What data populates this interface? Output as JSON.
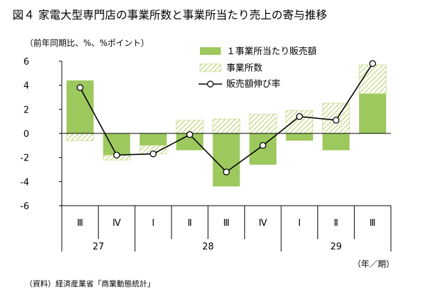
{
  "title": "図４ 家電大型専門店の事業所数と事業所当たり売上の寄与推移",
  "unit_label": "（前年同期比、%、%ポイント）",
  "source_note": "（資料）経済産業省「商業動態統計」",
  "period_label": "（年／期）",
  "colors": {
    "per_store": "#9dc85d",
    "stores_hatch": "#c9dc8f",
    "line": "#000000",
    "axis": "#000000"
  },
  "chart_data": {
    "type": "bar",
    "stacked": true,
    "categories": [
      "Ⅲ",
      "Ⅳ",
      "Ⅰ",
      "Ⅱ",
      "Ⅲ",
      "Ⅳ",
      "Ⅰ",
      "Ⅱ",
      "Ⅲ"
    ],
    "year_groups": [
      {
        "label": "27",
        "count": 2
      },
      {
        "label": "28",
        "count": 4
      },
      {
        "label": "29",
        "count": 3
      }
    ],
    "series": [
      {
        "name": "１事業所当たり販売額",
        "kind": "bar",
        "style": "solid",
        "values": [
          4.4,
          -1.8,
          -1.0,
          -1.4,
          -4.4,
          -2.6,
          -0.6,
          -1.4,
          3.3
        ]
      },
      {
        "name": "事業所数",
        "kind": "bar",
        "style": "hatched",
        "values": [
          -0.6,
          -0.4,
          -0.7,
          1.1,
          1.2,
          1.6,
          1.9,
          2.5,
          2.4
        ]
      },
      {
        "name": "販売額伸び率",
        "kind": "line",
        "values": [
          3.8,
          -1.8,
          -1.7,
          -0.1,
          -3.2,
          -1.0,
          1.4,
          1.1,
          5.8
        ]
      }
    ],
    "ylim": [
      -6,
      6
    ],
    "yticks": [
      -6,
      -4,
      -2,
      0,
      2,
      4,
      6
    ],
    "legend_position": "top-right",
    "grid": false
  }
}
